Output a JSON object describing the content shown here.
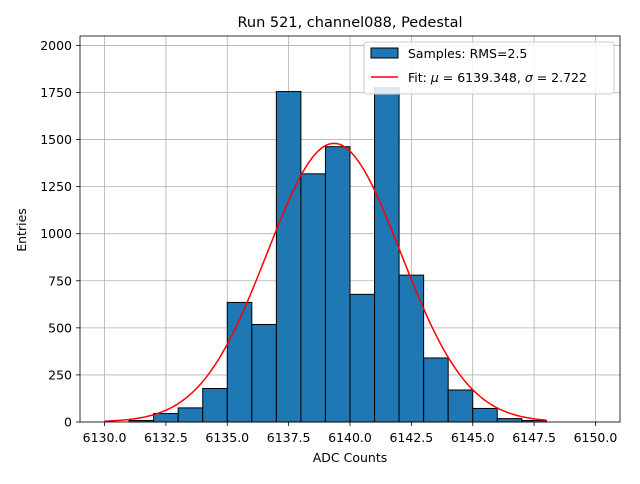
{
  "chart_data": {
    "type": "bar",
    "title": "Run 521, channel088, Pedestal",
    "xlabel": "ADC Counts",
    "ylabel": "Entries",
    "xlim": [
      6129.0,
      6151.0
    ],
    "ylim": [
      0,
      2050
    ],
    "xticks": [
      6130.0,
      6132.5,
      6135.0,
      6137.5,
      6140.0,
      6142.5,
      6145.0,
      6147.5,
      6150.0
    ],
    "xtick_labels": [
      "6130.0",
      "6132.5",
      "6135.0",
      "6137.5",
      "6140.0",
      "6142.5",
      "6145.0",
      "6147.5",
      "6150.0"
    ],
    "yticks": [
      0,
      250,
      500,
      750,
      1000,
      1250,
      1500,
      1750,
      2000
    ],
    "ytick_labels": [
      "0",
      "250",
      "500",
      "750",
      "1000",
      "1250",
      "1500",
      "1750",
      "2000"
    ],
    "grid": true,
    "legend_position": "top-right",
    "histogram": {
      "name": "Samples: RMS=2.5",
      "color": "#1f77b4",
      "edgecolor": "#000000",
      "bins": [
        {
          "x0": 6131.0,
          "x1": 6132.0,
          "count": 8
        },
        {
          "x0": 6132.0,
          "x1": 6133.0,
          "count": 45
        },
        {
          "x0": 6133.0,
          "x1": 6134.0,
          "count": 75
        },
        {
          "x0": 6134.0,
          "x1": 6135.0,
          "count": 178
        },
        {
          "x0": 6135.0,
          "x1": 6136.0,
          "count": 635
        },
        {
          "x0": 6136.0,
          "x1": 6137.0,
          "count": 518
        },
        {
          "x0": 6137.0,
          "x1": 6138.0,
          "count": 1755
        },
        {
          "x0": 6138.0,
          "x1": 6139.0,
          "count": 1318
        },
        {
          "x0": 6139.0,
          "x1": 6140.0,
          "count": 1462
        },
        {
          "x0": 6140.0,
          "x1": 6141.0,
          "count": 678
        },
        {
          "x0": 6141.0,
          "x1": 6142.0,
          "count": 1775
        },
        {
          "x0": 6142.0,
          "x1": 6143.0,
          "count": 780
        },
        {
          "x0": 6143.0,
          "x1": 6144.0,
          "count": 340
        },
        {
          "x0": 6144.0,
          "x1": 6145.0,
          "count": 170
        },
        {
          "x0": 6145.0,
          "x1": 6146.0,
          "count": 72
        },
        {
          "x0": 6146.0,
          "x1": 6147.0,
          "count": 18
        },
        {
          "x0": 6147.0,
          "x1": 6148.0,
          "count": 8
        }
      ]
    },
    "fit": {
      "type": "gaussian",
      "color": "#ff0000",
      "mu": 6139.348,
      "sigma": 2.722,
      "amplitude": 1480,
      "x_range": [
        6130.0,
        6148.0
      ],
      "legend_prefix": "Fit: ",
      "mu_symbol": "μ",
      "mu_text": " = 6139.348, ",
      "sigma_symbol": "σ",
      "sigma_text": " = 2.722"
    }
  }
}
